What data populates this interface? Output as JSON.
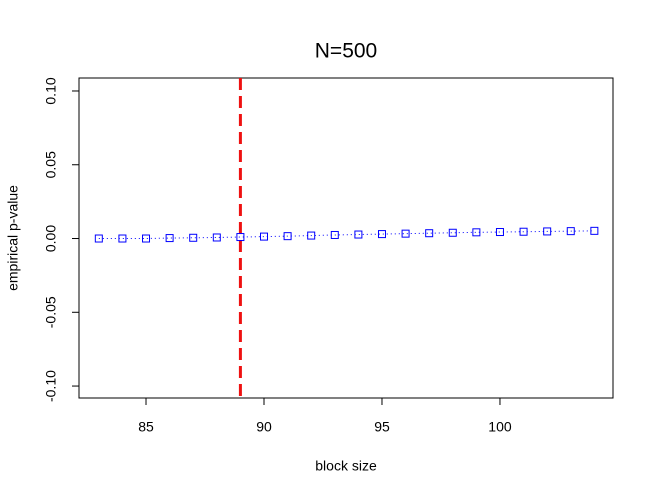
{
  "chart_data": {
    "type": "line",
    "title": "N=500",
    "x_label": "block size",
    "y_label": "empirical p-value",
    "x": [
      83,
      84,
      85,
      86,
      87,
      88,
      89,
      90,
      91,
      92,
      93,
      94,
      95,
      96,
      97,
      98,
      99,
      100,
      101,
      102,
      103,
      104
    ],
    "series": [
      {
        "color": "#0000ff",
        "values": [
          0.0,
          0.0,
          0.0,
          0.0003,
          0.0005,
          0.0007,
          0.001,
          0.0013,
          0.0016,
          0.002,
          0.0024,
          0.0027,
          0.003,
          0.0033,
          0.0036,
          0.0039,
          0.0042,
          0.0044,
          0.0046,
          0.0048,
          0.005,
          0.0052
        ]
      }
    ],
    "vline": {
      "x": 89,
      "color": "#ee1111"
    },
    "xlim": [
      82.16,
      104.79
    ],
    "ylim": [
      -0.1081,
      0.1088
    ],
    "xticks": [
      85,
      90,
      95,
      100
    ],
    "yticks": [
      {
        "value": -0.1,
        "label": "-0.10"
      },
      {
        "value": -0.05,
        "label": "-0.05"
      },
      {
        "value": 0,
        "label": "0.00"
      },
      {
        "value": 0.05,
        "label": "0.05"
      },
      {
        "value": 0.1,
        "label": "0.10"
      }
    ]
  }
}
